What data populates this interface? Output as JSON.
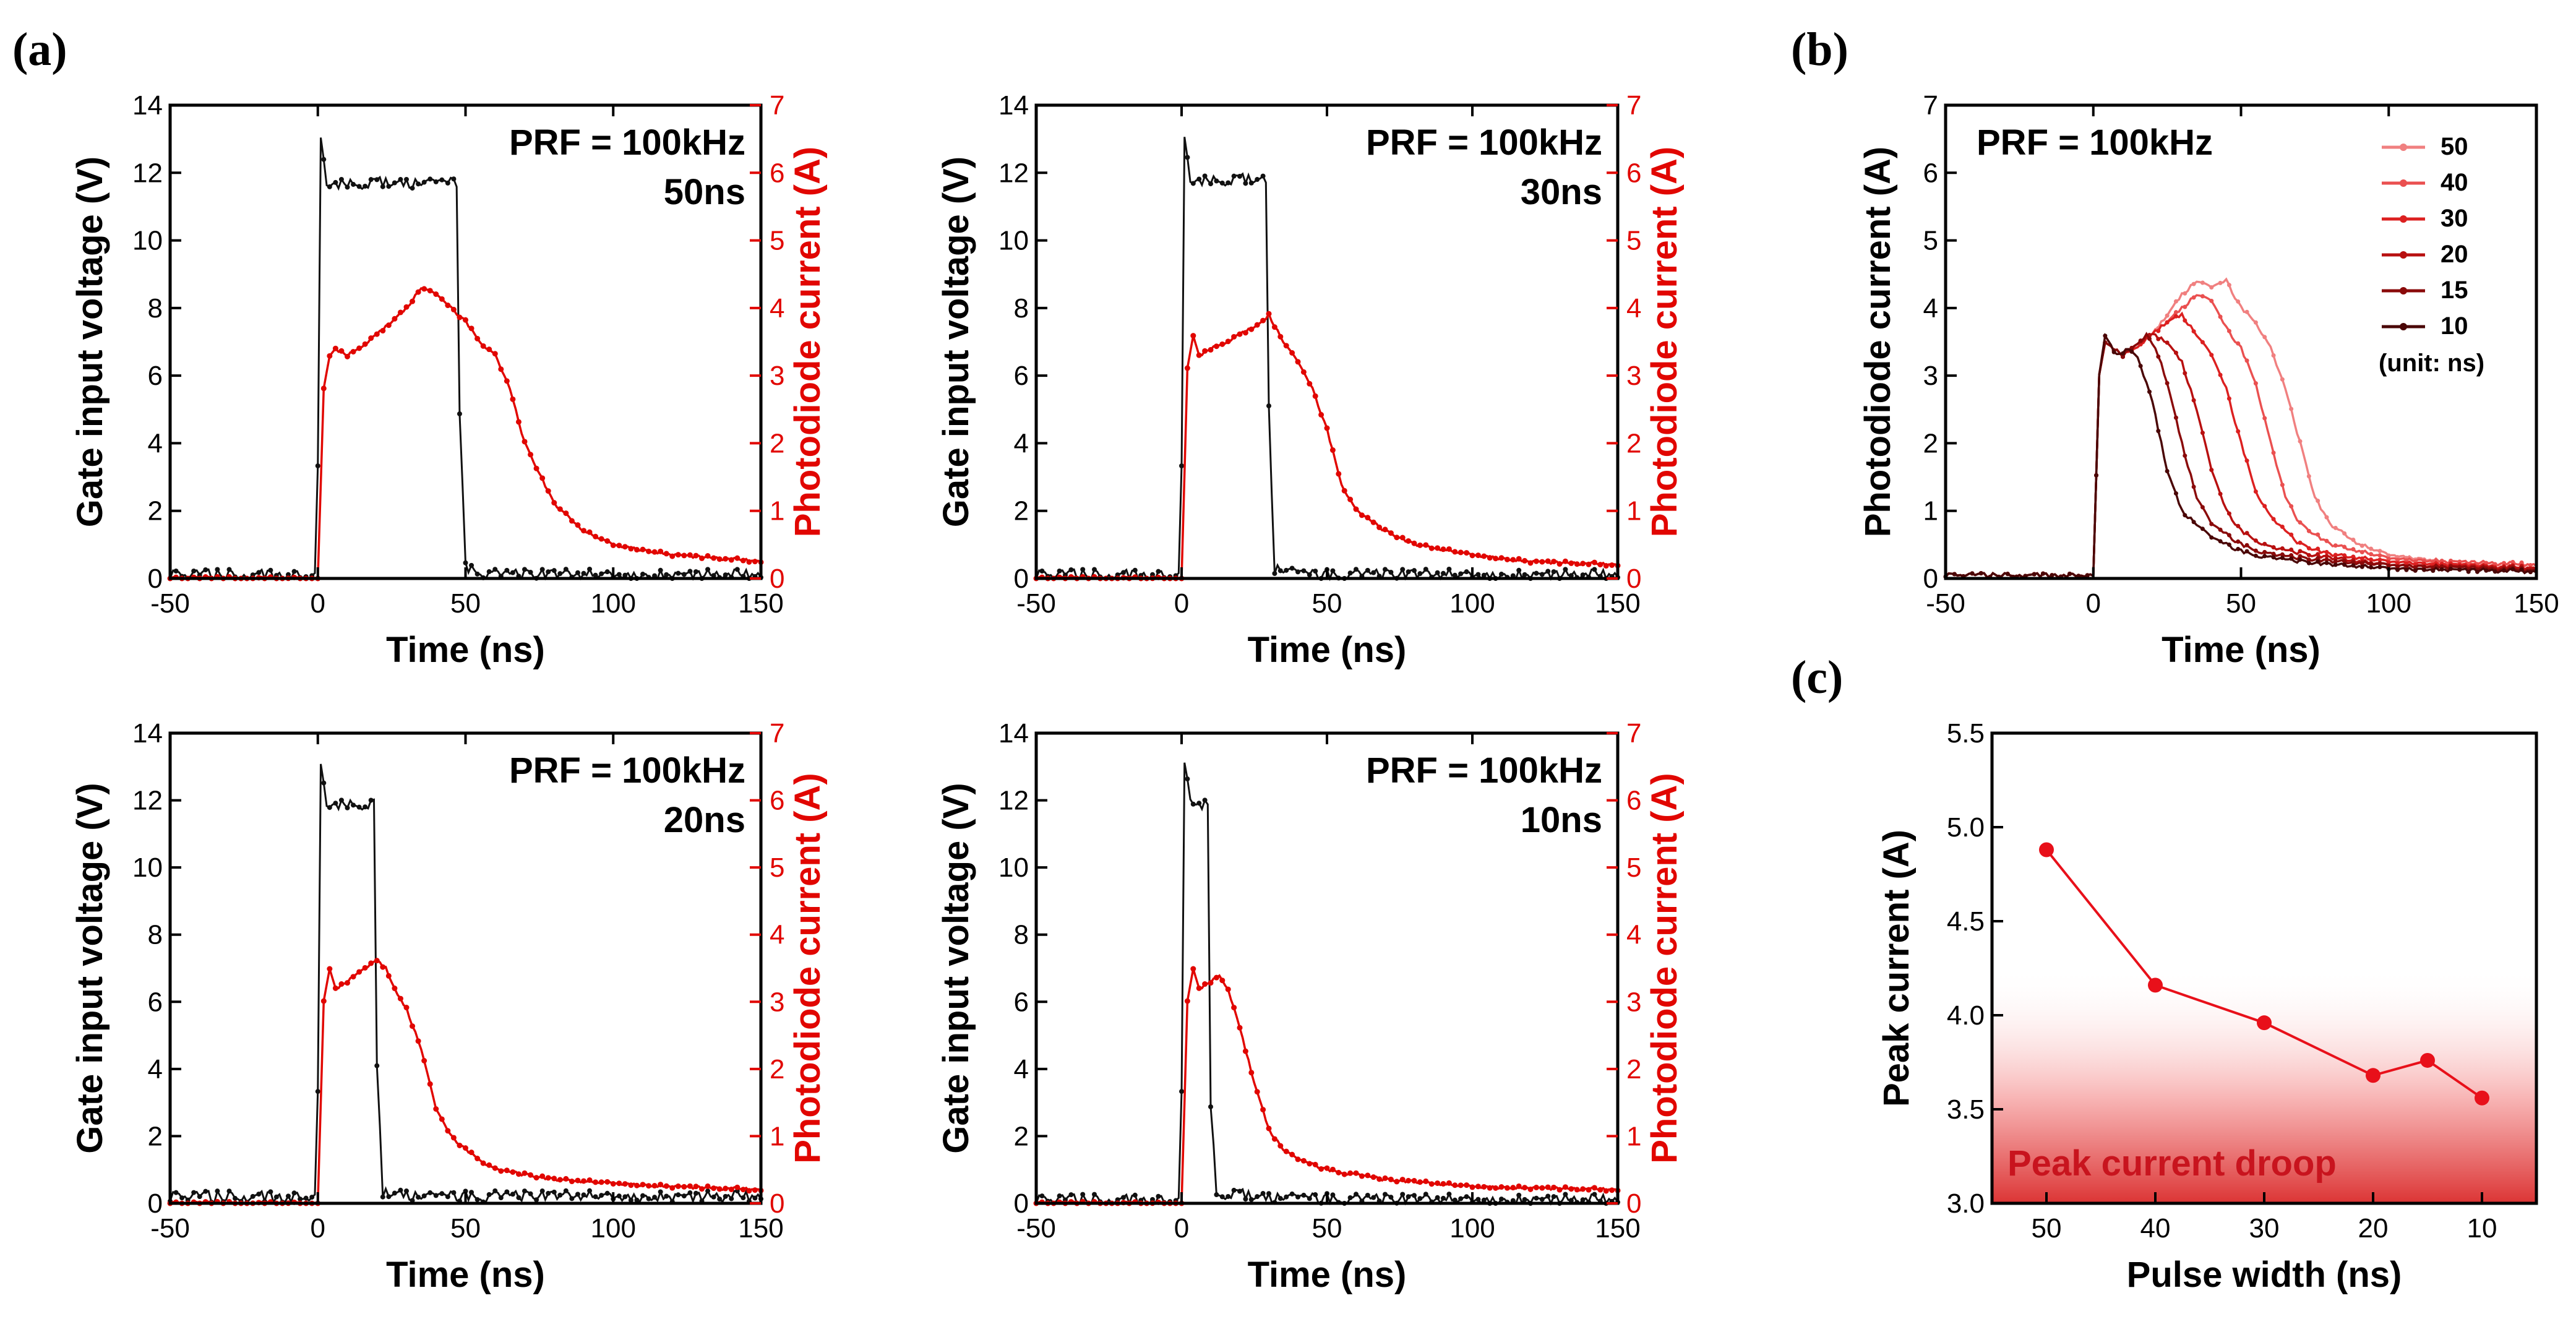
{
  "panel_labels": {
    "a": "(a)",
    "b": "(b)",
    "c": "(c)"
  },
  "colors": {
    "gate": "#111111",
    "photodiode": "#e10600",
    "series_b": [
      "#f08080",
      "#ea5050",
      "#dc2020",
      "#b81010",
      "#8a0a0a",
      "#4a0606"
    ],
    "peak": "#e8101a"
  },
  "chart_data": [
    {
      "id": "a1",
      "type": "line",
      "title": "PRF = 100kHz",
      "subtitle": "50ns",
      "pulse_ns": 50,
      "xlabel": "Time (ns)",
      "ylabel": "Gate input voltage (V)",
      "y2label": "Photodiode current (A)",
      "xlim": [
        -50,
        150
      ],
      "ylim": [
        0,
        14
      ],
      "y2lim": [
        0,
        7
      ],
      "xticks": [
        -50,
        0,
        50,
        100,
        150
      ],
      "yticks": [
        0,
        2,
        4,
        6,
        8,
        10,
        12,
        14
      ],
      "y2ticks": [
        0,
        1,
        2,
        3,
        4,
        5,
        6,
        7
      ],
      "gate_series": {
        "x": [
          -50,
          -1,
          0,
          0.5,
          3,
          5,
          47,
          48,
          50,
          55,
          60,
          80,
          100,
          150
        ],
        "y": [
          0.1,
          0.1,
          3.4,
          13.4,
          11.6,
          11.7,
          11.7,
          5.0,
          0.3,
          0.2,
          0.1,
          0.1,
          0.1,
          0.1
        ]
      },
      "pd_series": {
        "x": [
          -50,
          0,
          2,
          4,
          6,
          10,
          20,
          30,
          35,
          40,
          45,
          50,
          55,
          60,
          65,
          70,
          80,
          90,
          100,
          120,
          150
        ],
        "y": [
          0.0,
          0.0,
          2.8,
          3.3,
          3.4,
          3.3,
          3.6,
          4.0,
          4.3,
          4.2,
          4.0,
          3.8,
          3.5,
          3.3,
          2.8,
          2.0,
          1.1,
          0.7,
          0.5,
          0.35,
          0.25
        ]
      }
    },
    {
      "id": "a2",
      "type": "line",
      "title": "PRF = 100kHz",
      "subtitle": "30ns",
      "pulse_ns": 30,
      "xlabel": "Time (ns)",
      "ylabel": "Gate input voltage (V)",
      "y2label": "Photodiode current (A)",
      "xlim": [
        -50,
        150
      ],
      "ylim": [
        0,
        14
      ],
      "y2lim": [
        0,
        7
      ],
      "xticks": [
        -50,
        0,
        50,
        100,
        150
      ],
      "yticks": [
        0,
        2,
        4,
        6,
        8,
        10,
        12,
        14
      ],
      "y2ticks": [
        0,
        1,
        2,
        3,
        4,
        5,
        6,
        7
      ],
      "gate_series": {
        "x": [
          -50,
          -1,
          0,
          0.5,
          3,
          5,
          29,
          30,
          32,
          37,
          45,
          60,
          100,
          150
        ],
        "y": [
          0.1,
          0.1,
          3.4,
          13.4,
          11.7,
          11.8,
          11.8,
          5.0,
          0.3,
          0.2,
          0.1,
          0.1,
          0.1,
          0.1
        ]
      },
      "pd_series": {
        "x": [
          -50,
          0,
          2,
          4,
          6,
          10,
          20,
          28,
          30,
          35,
          40,
          45,
          50,
          55,
          60,
          70,
          80,
          100,
          120,
          150
        ],
        "y": [
          0.0,
          0.0,
          3.1,
          3.6,
          3.3,
          3.4,
          3.6,
          3.8,
          3.9,
          3.5,
          3.2,
          2.8,
          2.2,
          1.4,
          1.0,
          0.7,
          0.5,
          0.35,
          0.25,
          0.2
        ]
      }
    },
    {
      "id": "a3",
      "type": "line",
      "title": "PRF = 100kHz",
      "subtitle": "20ns",
      "pulse_ns": 20,
      "xlabel": "Time (ns)",
      "ylabel": "Gate input voltage (V)",
      "y2label": "Photodiode current (A)",
      "xlim": [
        -50,
        150
      ],
      "ylim": [
        0,
        14
      ],
      "y2lim": [
        0,
        7
      ],
      "xticks": [
        -50,
        0,
        50,
        100,
        150
      ],
      "yticks": [
        0,
        2,
        4,
        6,
        8,
        10,
        12,
        14
      ],
      "y2ticks": [
        0,
        1,
        2,
        3,
        4,
        5,
        6,
        7
      ],
      "gate_series": {
        "x": [
          -50,
          -1,
          0,
          0.5,
          3,
          5,
          19,
          20,
          22,
          27,
          35,
          60,
          100,
          150
        ],
        "y": [
          0.2,
          0.2,
          3.4,
          13.4,
          11.8,
          11.9,
          11.9,
          4.0,
          0.3,
          0.3,
          0.2,
          0.2,
          0.2,
          0.2
        ]
      },
      "pd_series": {
        "x": [
          -50,
          0,
          2,
          4,
          6,
          10,
          15,
          20,
          23,
          27,
          30,
          35,
          40,
          45,
          50,
          60,
          80,
          100,
          120,
          150
        ],
        "y": [
          0.0,
          0.0,
          3.0,
          3.5,
          3.2,
          3.3,
          3.5,
          3.6,
          3.5,
          3.1,
          2.9,
          2.3,
          1.4,
          1.0,
          0.8,
          0.5,
          0.35,
          0.3,
          0.25,
          0.2
        ]
      }
    },
    {
      "id": "a4",
      "type": "line",
      "title": "PRF = 100kHz",
      "subtitle": "10ns",
      "pulse_ns": 10,
      "xlabel": "Time (ns)",
      "ylabel": "Gate input voltage (V)",
      "y2label": "Photodiode current (A)",
      "xlim": [
        -50,
        150
      ],
      "ylim": [
        0,
        14
      ],
      "y2lim": [
        0,
        7
      ],
      "xticks": [
        -50,
        0,
        50,
        100,
        150
      ],
      "yticks": [
        0,
        2,
        4,
        6,
        8,
        10,
        12,
        14
      ],
      "y2ticks": [
        0,
        1,
        2,
        3,
        4,
        5,
        6,
        7
      ],
      "gate_series": {
        "x": [
          -50,
          -1,
          0,
          0.5,
          3,
          5,
          9,
          10,
          12,
          17,
          25,
          60,
          100,
          150
        ],
        "y": [
          0.1,
          0.1,
          3.4,
          13.4,
          12.0,
          11.9,
          11.9,
          3.0,
          0.3,
          0.3,
          0.2,
          0.1,
          0.1,
          0.1
        ]
      },
      "pd_series": {
        "x": [
          -50,
          0,
          2,
          4,
          6,
          10,
          13,
          16,
          20,
          25,
          30,
          35,
          40,
          50,
          70,
          100,
          150
        ],
        "y": [
          0.0,
          0.0,
          3.0,
          3.5,
          3.2,
          3.3,
          3.4,
          3.2,
          2.6,
          1.8,
          1.1,
          0.8,
          0.65,
          0.5,
          0.35,
          0.25,
          0.2
        ]
      }
    },
    {
      "id": "b",
      "type": "line",
      "title": "PRF = 100kHz",
      "xlabel": "Time (ns)",
      "ylabel": "Photodiode current (A)",
      "xlim": [
        -50,
        150
      ],
      "ylim": [
        0,
        7
      ],
      "xticks": [
        -50,
        0,
        50,
        100,
        150
      ],
      "yticks": [
        0,
        1,
        2,
        3,
        4,
        5,
        6,
        7
      ],
      "legend_note": "(unit: ns)",
      "series": [
        {
          "name": "50",
          "x": [
            -50,
            0,
            2,
            4,
            10,
            20,
            30,
            35,
            40,
            45,
            50,
            55,
            60,
            65,
            70,
            75,
            80,
            90,
            100,
            120,
            150
          ],
          "y": [
            0.05,
            0.05,
            3.0,
            3.5,
            3.3,
            3.6,
            4.2,
            4.4,
            4.3,
            4.4,
            4.0,
            3.8,
            3.4,
            2.8,
            2.0,
            1.2,
            0.8,
            0.5,
            0.35,
            0.25,
            0.2
          ]
        },
        {
          "name": "40",
          "x": [
            -50,
            0,
            2,
            4,
            10,
            20,
            30,
            35,
            40,
            45,
            50,
            55,
            60,
            65,
            70,
            80,
            100,
            120,
            150
          ],
          "y": [
            0.05,
            0.05,
            3.0,
            3.5,
            3.3,
            3.6,
            4.0,
            4.2,
            4.1,
            3.7,
            3.4,
            2.9,
            2.0,
            1.2,
            0.8,
            0.5,
            0.3,
            0.25,
            0.2
          ]
        },
        {
          "name": "30",
          "x": [
            -50,
            0,
            2,
            4,
            10,
            20,
            25,
            30,
            35,
            40,
            45,
            50,
            55,
            60,
            70,
            80,
            100,
            150
          ],
          "y": [
            0.05,
            0.05,
            3.0,
            3.5,
            3.3,
            3.6,
            3.8,
            3.9,
            3.6,
            3.3,
            2.8,
            2.0,
            1.3,
            0.9,
            0.5,
            0.35,
            0.25,
            0.15
          ]
        },
        {
          "name": "20",
          "x": [
            -50,
            0,
            2,
            4,
            10,
            15,
            20,
            25,
            30,
            35,
            40,
            45,
            50,
            60,
            80,
            100,
            150
          ],
          "y": [
            0.05,
            0.05,
            3.0,
            3.5,
            3.3,
            3.5,
            3.6,
            3.5,
            3.2,
            2.5,
            1.6,
            1.0,
            0.7,
            0.45,
            0.3,
            0.2,
            0.15
          ]
        },
        {
          "name": "15",
          "x": [
            -50,
            0,
            2,
            4,
            10,
            15,
            18,
            22,
            25,
            30,
            35,
            40,
            50,
            60,
            80,
            100,
            150
          ],
          "y": [
            0.05,
            0.05,
            3.0,
            3.5,
            3.3,
            3.5,
            3.6,
            3.3,
            2.9,
            2.0,
            1.2,
            0.8,
            0.5,
            0.35,
            0.25,
            0.2,
            0.12
          ]
        },
        {
          "name": "10",
          "x": [
            -50,
            0,
            2,
            4,
            8,
            12,
            15,
            20,
            25,
            30,
            40,
            50,
            60,
            80,
            100,
            150
          ],
          "y": [
            0.05,
            0.05,
            3.0,
            3.6,
            3.3,
            3.4,
            3.3,
            2.6,
            1.6,
            1.0,
            0.6,
            0.4,
            0.3,
            0.2,
            0.15,
            0.1
          ]
        }
      ]
    },
    {
      "id": "c",
      "type": "line",
      "xlabel": "Pulse width (ns)",
      "ylabel": "Peak current (A)",
      "categories": [
        "50",
        "40",
        "30",
        "20",
        "15",
        "10"
      ],
      "x": [
        50,
        40,
        30,
        20,
        15,
        10
      ],
      "values": [
        4.88,
        4.16,
        3.96,
        3.68,
        3.76,
        3.56
      ],
      "xlim": [
        55,
        5
      ],
      "ylim": [
        3.0,
        5.5
      ],
      "xticks": [
        50,
        40,
        30,
        20,
        10
      ],
      "yticks": [
        3.0,
        3.5,
        4.0,
        4.5,
        5.0,
        5.5
      ],
      "annotation": "Peak current droop",
      "shade_ylim": [
        3.0,
        4.25
      ]
    }
  ]
}
